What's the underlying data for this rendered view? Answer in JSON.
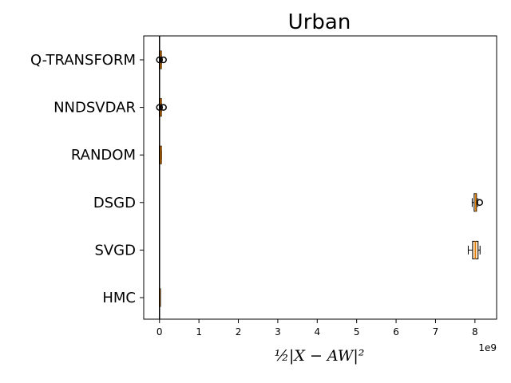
{
  "chart_data": {
    "type": "boxplot",
    "orientation": "horizontal",
    "title": "Urban",
    "xlabel": "½|X − AW|²",
    "x_offset_label": "1e9",
    "x_ticks": [
      "0",
      "1",
      "2",
      "3",
      "4",
      "5",
      "6",
      "7",
      "8"
    ],
    "xlim": [
      -0.4,
      8.55
    ],
    "vertical_line_at": 0,
    "categories": [
      "Q-TRANSFORM",
      "NNDSVDAR",
      "RANDOM",
      "DSGD",
      "SVGD",
      "HMC"
    ],
    "series": [
      {
        "label": "Q-TRANSFORM",
        "whisker_low": 0.02,
        "q1": 0.03,
        "median": 0.035,
        "q3": 0.04,
        "whisker_high": 0.05,
        "outliers": [
          0.0,
          0.1
        ]
      },
      {
        "label": "NNDSVDAR",
        "whisker_low": 0.02,
        "q1": 0.03,
        "median": 0.035,
        "q3": 0.04,
        "whisker_high": 0.05,
        "outliers": [
          0.0,
          0.1
        ]
      },
      {
        "label": "RANDOM",
        "whisker_low": 0.02,
        "q1": 0.03,
        "median": 0.035,
        "q3": 0.04,
        "whisker_high": 0.05,
        "outliers": []
      },
      {
        "label": "DSGD",
        "whisker_low": 7.93,
        "q1": 7.98,
        "median": 8.02,
        "q3": 8.04,
        "whisker_high": 8.07,
        "outliers": [
          8.12
        ]
      },
      {
        "label": "SVGD",
        "whisker_low": 7.83,
        "q1": 7.94,
        "median": 8.01,
        "q3": 8.08,
        "whisker_high": 8.13,
        "outliers": []
      },
      {
        "label": "HMC",
        "whisker_low": 0.0,
        "q1": 0.005,
        "median": 0.01,
        "q3": 0.015,
        "whisker_high": 0.02,
        "outliers": []
      }
    ],
    "colors": {
      "box_fill": "#fbe0bf",
      "box_edge": "#000000",
      "median": "#e07b00",
      "axis": "#000000"
    },
    "grid": false
  }
}
